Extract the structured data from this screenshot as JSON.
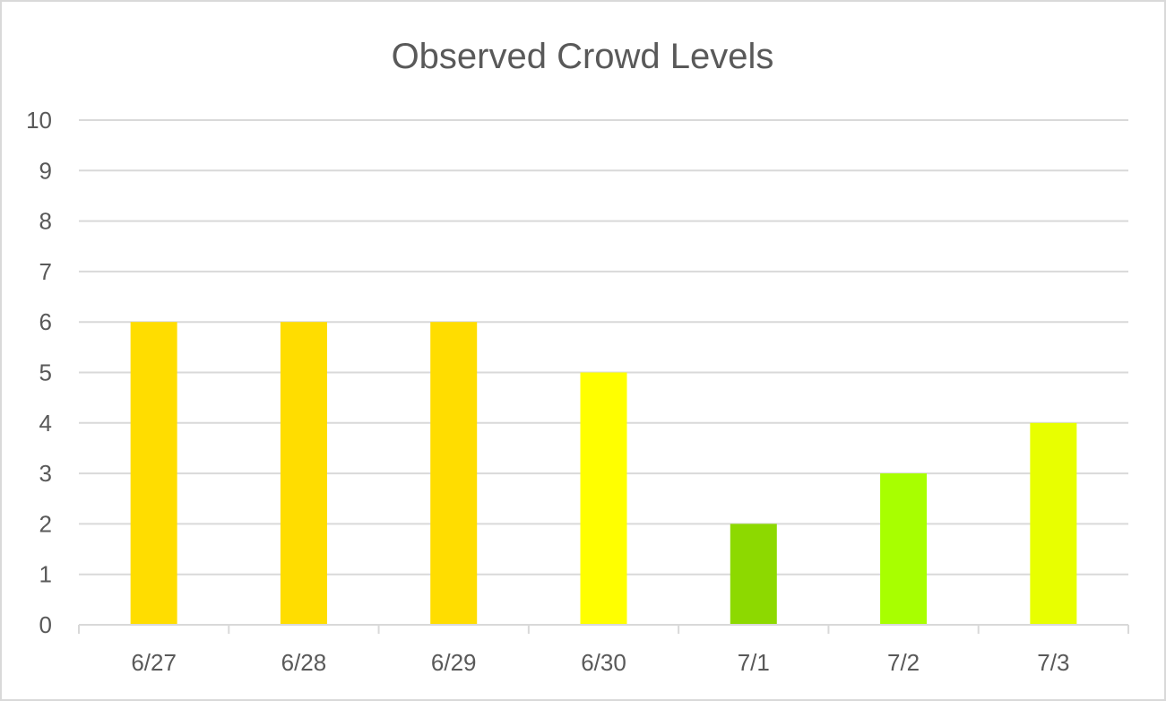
{
  "chart_data": {
    "type": "bar",
    "title": "Observed Crowd Levels",
    "xlabel": "",
    "ylabel": "",
    "categories": [
      "6/27",
      "6/28",
      "6/29",
      "6/30",
      "7/1",
      "7/2",
      "7/3"
    ],
    "values": [
      6,
      6,
      6,
      5,
      2,
      3,
      4
    ],
    "bar_colors": [
      "#FFDD00",
      "#FFDD00",
      "#FFDD00",
      "#FFFF00",
      "#8DD900",
      "#A8FF00",
      "#E8FF00"
    ],
    "ylim": [
      0,
      10
    ],
    "yticks": [
      0,
      1,
      2,
      3,
      4,
      5,
      6,
      7,
      8,
      9,
      10
    ],
    "grid": true,
    "legend": "none"
  }
}
